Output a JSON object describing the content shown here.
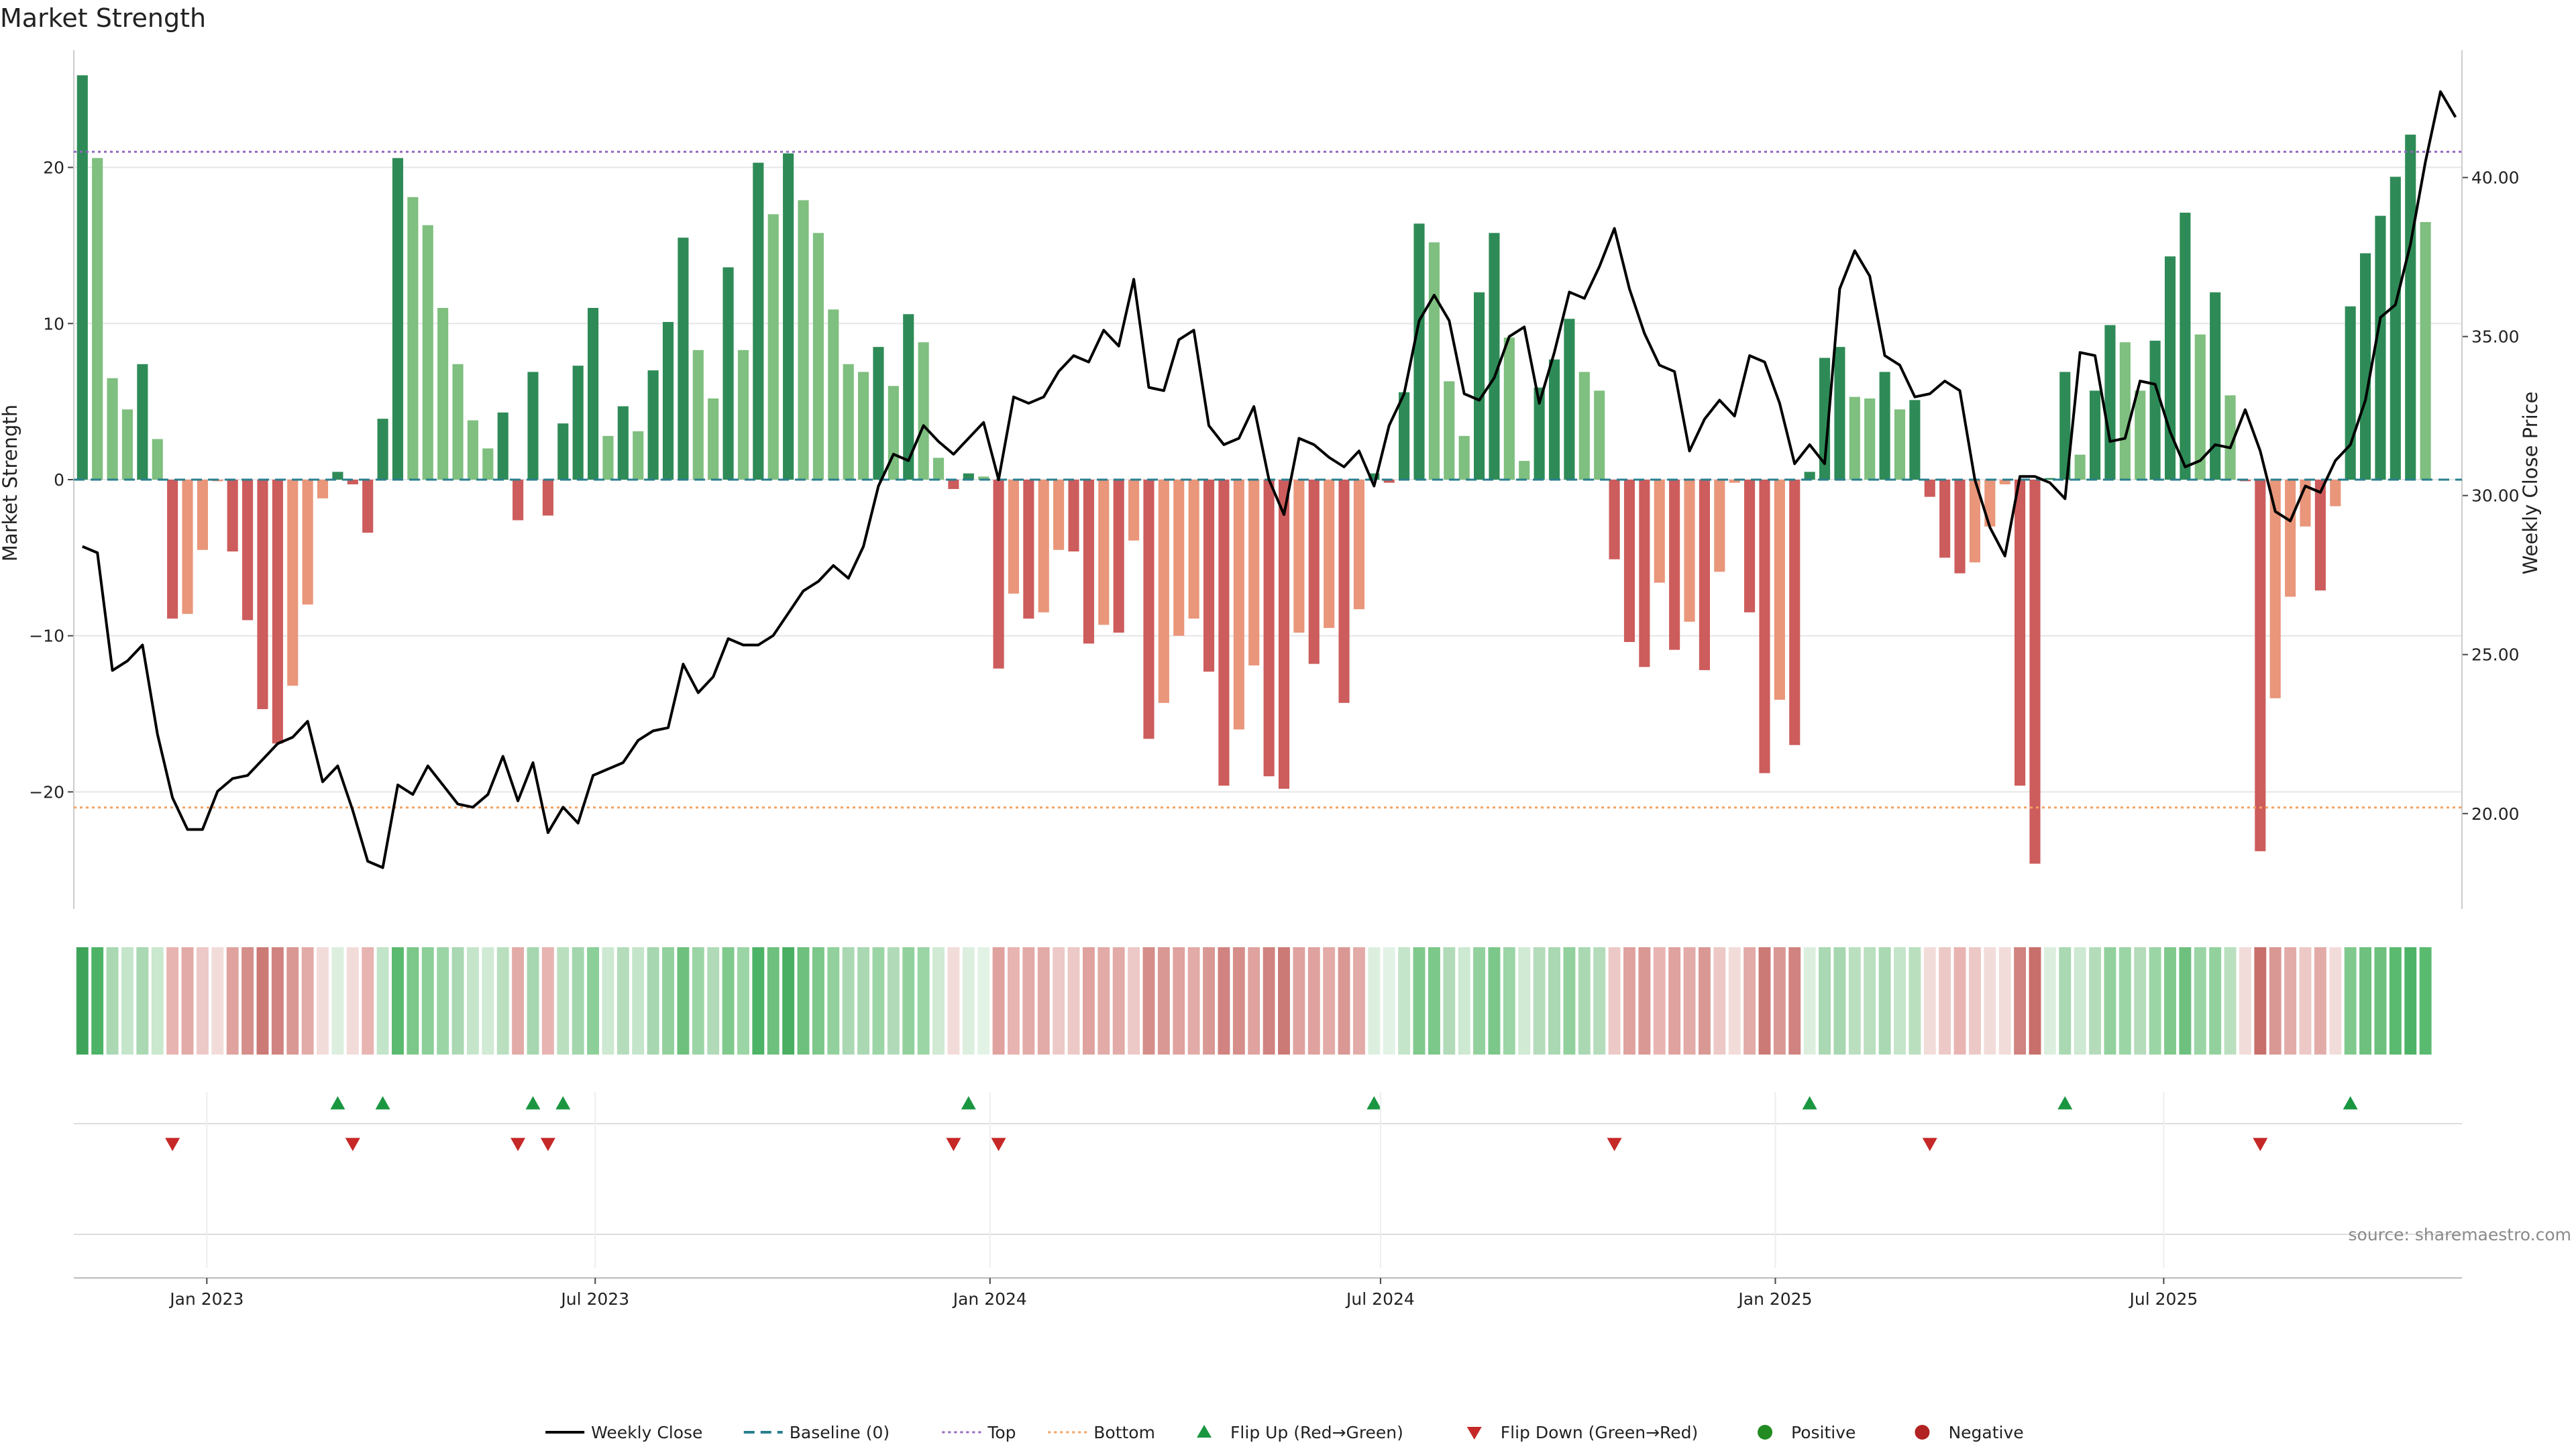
{
  "chart_data": {
    "type": "bar",
    "title": "Market Strength",
    "ylabel": "Market Strength",
    "y2label": "Weekly Close Price",
    "ylim": [
      -27.5,
      27.5
    ],
    "y2lim": [
      17,
      44
    ],
    "yticks": [
      -20,
      -10,
      0,
      10,
      20
    ],
    "y2ticks": [
      20,
      25,
      30,
      35,
      40
    ],
    "y2tick_labels": [
      "20.00",
      "25.00",
      "30.00",
      "35.00",
      "40.00"
    ],
    "x_start": "2022-11-04",
    "x_step_days": 7,
    "x_range": [
      "2022-10-31",
      "2025-11-17"
    ],
    "x_ticks": [
      {
        "date": "2023-01-01",
        "label": "Jan 2023"
      },
      {
        "date": "2023-07-01",
        "label": "Jul 2023"
      },
      {
        "date": "2024-01-01",
        "label": "Jan 2024"
      },
      {
        "date": "2024-07-01",
        "label": "Jul 2024"
      },
      {
        "date": "2025-01-01",
        "label": "Jan 2025"
      },
      {
        "date": "2025-07-01",
        "label": "Jul 2025"
      }
    ],
    "top_line": 21,
    "bottom_line": -21,
    "grid": true,
    "legend_position": "bottom-center",
    "strength": [
      25.9,
      20.6,
      6.5,
      4.5,
      7.4,
      2.6,
      -8.9,
      -8.6,
      -4.5,
      -0.1,
      -4.6,
      -9.0,
      -14.7,
      -16.9,
      -13.2,
      -8.0,
      -1.2,
      0.5,
      -0.3,
      -3.4,
      3.9,
      20.6,
      18.1,
      16.3,
      11.0,
      7.4,
      3.8,
      2.0,
      4.3,
      -2.6,
      6.9,
      -2.3,
      3.6,
      7.3,
      11.0,
      2.8,
      4.7,
      3.1,
      7.0,
      10.1,
      15.5,
      8.3,
      5.2,
      13.6,
      8.3,
      20.3,
      17.0,
      20.9,
      17.9,
      15.8,
      10.9,
      7.4,
      6.9,
      8.5,
      6.0,
      10.6,
      8.8,
      1.4,
      -0.6,
      0.4,
      0.2,
      -12.1,
      -7.3,
      -8.9,
      -8.5,
      -4.5,
      -4.6,
      -10.5,
      -9.3,
      -9.8,
      -3.9,
      -16.6,
      -14.3,
      -10.0,
      -8.9,
      -12.3,
      -19.6,
      -16.0,
      -11.9,
      -19.0,
      -19.8,
      -9.8,
      -11.8,
      -9.5,
      -14.3,
      -8.3,
      0.4,
      -0.2,
      5.6,
      16.4,
      15.2,
      6.3,
      2.8,
      12.0,
      15.8,
      9.1,
      1.2,
      5.9,
      7.7,
      10.3,
      6.9,
      5.7,
      -5.1,
      -10.4,
      -12.0,
      -6.6,
      -10.9,
      -9.1,
      -12.2,
      -5.9,
      -0.2,
      -8.5,
      -18.8,
      -14.1,
      -17.0,
      0.5,
      7.8,
      8.5,
      5.3,
      5.2,
      6.9,
      4.5,
      5.1,
      -1.1,
      -5.0,
      -6.0,
      -5.3,
      -3.0,
      -0.3,
      -19.6,
      -24.6,
      0.1,
      6.9,
      1.6,
      5.7,
      9.9,
      8.8,
      5.7,
      8.9,
      14.3,
      17.1,
      9.3,
      12.0,
      5.4,
      -0.1,
      -23.8,
      -14.0,
      -7.5,
      -3.0,
      -7.1,
      -1.7,
      11.1,
      14.5,
      16.9,
      19.4,
      22.1,
      16.5
    ],
    "price": [
      28.4,
      28.2,
      24.5,
      24.8,
      25.3,
      22.5,
      20.5,
      19.5,
      19.5,
      20.7,
      21.1,
      21.2,
      21.7,
      22.2,
      22.4,
      22.9,
      21.0,
      21.5,
      20.1,
      18.5,
      18.3,
      20.9,
      20.6,
      21.5,
      20.9,
      20.3,
      20.2,
      20.6,
      21.8,
      20.4,
      21.6,
      19.4,
      20.2,
      19.7,
      21.2,
      21.4,
      21.6,
      22.3,
      22.6,
      22.7,
      24.7,
      23.8,
      24.3,
      25.5,
      25.3,
      25.3,
      25.6,
      26.3,
      27.0,
      27.3,
      27.8,
      27.4,
      28.4,
      30.3,
      31.3,
      31.1,
      32.2,
      31.7,
      31.3,
      31.8,
      32.3,
      30.5,
      33.1,
      32.9,
      33.1,
      33.9,
      34.4,
      34.2,
      35.2,
      34.7,
      36.8,
      33.4,
      33.3,
      34.9,
      35.2,
      32.2,
      31.6,
      31.8,
      32.8,
      30.5,
      29.4,
      31.8,
      31.6,
      31.2,
      30.9,
      31.4,
      30.3,
      32.2,
      33.2,
      35.5,
      36.3,
      35.5,
      33.2,
      33.0,
      33.7,
      35.0,
      35.3,
      32.9,
      34.5,
      36.4,
      36.2,
      37.2,
      38.4,
      36.5,
      35.1,
      34.1,
      33.9,
      31.4,
      32.4,
      33.0,
      32.5,
      34.4,
      34.2,
      32.9,
      31.0,
      31.6,
      31.0,
      36.5,
      37.7,
      36.9,
      34.4,
      34.1,
      33.1,
      33.2,
      33.6,
      33.3,
      30.5,
      29.0,
      28.1,
      30.6,
      30.6,
      30.4,
      29.9,
      34.5,
      34.4,
      31.7,
      31.8,
      33.6,
      33.5,
      32.0,
      30.9,
      31.1,
      31.6,
      31.5,
      32.7,
      31.4,
      29.5,
      29.2,
      30.3,
      30.1,
      31.1,
      31.6,
      33.0,
      35.6,
      36.0,
      37.9,
      40.5,
      42.7,
      41.9
    ],
    "strip_colors": [
      "#3fa45a",
      "#4db467",
      "#a9d8b2",
      "#c4e5ca",
      "#a9d8b2",
      "#c9e8ce",
      "#e8b4b1",
      "#e2aba7",
      "#ecc9c6",
      "#f2dcda",
      "#dfa29f",
      "#d58e8a",
      "#cc7a76",
      "#d08380",
      "#d99894",
      "#e2aba7",
      "#f2dcda",
      "#dcefdf",
      "#f2dcda",
      "#e8b4b1",
      "#c2e4c8",
      "#5aba6f",
      "#7cc78a",
      "#8ccf99",
      "#9bd5a6",
      "#a9d8b2",
      "#c4e5ca",
      "#d0ead4",
      "#b9dfbf",
      "#e2aba7",
      "#a6d7b0",
      "#e8b4b1",
      "#b9dfbf",
      "#a3d6ad",
      "#8ccf99",
      "#cde9d1",
      "#b4dcbb",
      "#c4e5ca",
      "#a6d7b0",
      "#92d19d",
      "#6ec07e",
      "#9bd5a6",
      "#b1dbb8",
      "#80c98d",
      "#9bd5a6",
      "#4db467",
      "#6ec07e",
      "#4aaf62",
      "#6ec07e",
      "#7cc78a",
      "#92d19d",
      "#a9d8b2",
      "#a9d8b2",
      "#9bd5a6",
      "#b1dbb8",
      "#92d19d",
      "#9bd5a6",
      "#d0ead4",
      "#f2dcda",
      "#dcefdf",
      "#e2f2e5",
      "#dfa29f",
      "#e8b4b1",
      "#e2aba7",
      "#e2aba7",
      "#ecc9c6",
      "#ecc9c6",
      "#dfa29f",
      "#e2aba7",
      "#e2aba7",
      "#ecc9c6",
      "#d58e8a",
      "#d99894",
      "#dfa29f",
      "#e2aba7",
      "#d99894",
      "#d08380",
      "#d58e8a",
      "#dfa29f",
      "#d08380",
      "#cc7a76",
      "#dfa29f",
      "#dfa29f",
      "#e2aba7",
      "#d99894",
      "#e2aba7",
      "#dcefdf",
      "#e2f2e5",
      "#c4e5ca",
      "#80c98d",
      "#7cc78a",
      "#b1dbb8",
      "#cde9d1",
      "#92d19d",
      "#7cc78a",
      "#9bd5a6",
      "#d0ead4",
      "#b4dcbb",
      "#a9d8b2",
      "#92d19d",
      "#a9d8b2",
      "#b4dcbb",
      "#ecc9c6",
      "#dfa29f",
      "#d99894",
      "#e8b4b1",
      "#dfa29f",
      "#e2aba7",
      "#d99894",
      "#ecc9c6",
      "#f2dcda",
      "#e2aba7",
      "#cc7a76",
      "#d99894",
      "#d08380",
      "#dcefdf",
      "#a9d8b2",
      "#a6d7b0",
      "#b9dfbf",
      "#b9dfbf",
      "#a9d8b2",
      "#c4e5ca",
      "#b9dfbf",
      "#f2dcda",
      "#ecc9c6",
      "#e8b4b1",
      "#ecc9c6",
      "#f2dcda",
      "#f2dcda",
      "#d08380",
      "#c96f6b",
      "#dcefdf",
      "#a9d8b2",
      "#cde9d1",
      "#b4dcbb",
      "#92d19d",
      "#9bd5a6",
      "#b4dcbb",
      "#9bd5a6",
      "#80c98d",
      "#6ec07e",
      "#9bd5a6",
      "#92d19d",
      "#b9dfbf",
      "#f2dcda",
      "#c96f6b",
      "#d99894",
      "#e2aba7",
      "#ecc9c6",
      "#e2aba7",
      "#f2dcda",
      "#80c98d",
      "#6ec07e",
      "#6ec07e",
      "#5aba6f",
      "#4db467",
      "#5aba6f"
    ],
    "flip_up_indices": [
      17,
      20,
      30,
      32,
      59,
      86,
      115,
      132,
      151
    ],
    "flip_down_indices": [
      6,
      18,
      29,
      31,
      58,
      61,
      102,
      123,
      145
    ],
    "colors": {
      "strong_positive": "#2e8b57",
      "weak_positive": "#7fbf7f",
      "strong_negative": "#cd5c5c",
      "weak_negative": "#e9967a",
      "price_line": "#000000",
      "baseline": "#2a7f8f",
      "top": "#9467bd",
      "bottom": "#f4a261",
      "flip_up": "#1a9641",
      "flip_down": "#c62828",
      "positive": "#228b22",
      "negative": "#b22222"
    },
    "legend": [
      {
        "label": "Weekly Close",
        "kind": "line",
        "color": "#000000"
      },
      {
        "label": "Baseline (0)",
        "kind": "dash",
        "color": "#2a7f8f"
      },
      {
        "label": "Top",
        "kind": "dot",
        "color": "#9467bd"
      },
      {
        "label": "Bottom",
        "kind": "dot",
        "color": "#f4a261"
      },
      {
        "label": "Flip Up (Red→Green)",
        "kind": "tri-up",
        "color": "#1a9641"
      },
      {
        "label": "Flip Down (Green→Red)",
        "kind": "tri-down",
        "color": "#c62828"
      },
      {
        "label": "Positive",
        "kind": "circle",
        "color": "#228b22"
      },
      {
        "label": "Negative",
        "kind": "circle",
        "color": "#b22222"
      }
    ]
  },
  "source": "source: sharemaestro.com"
}
